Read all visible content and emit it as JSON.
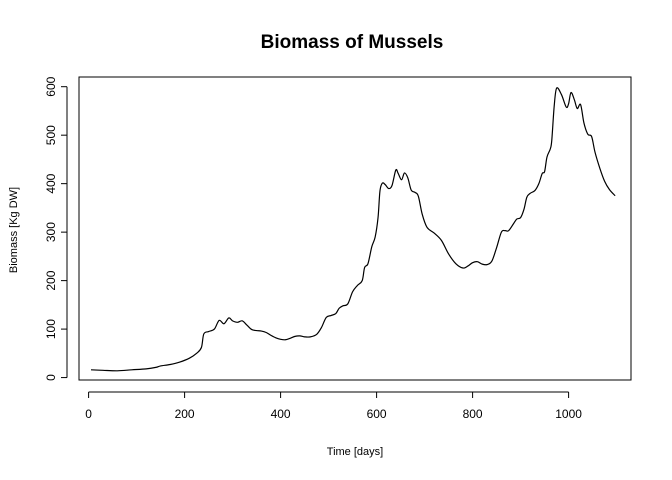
{
  "chart_data": {
    "type": "line",
    "title": "Biomass of Mussels",
    "xlabel": "Time [days]",
    "ylabel": "Biomass [Kg DW]",
    "xlim": [
      -20,
      1130
    ],
    "ylim": [
      -5,
      620
    ],
    "x_ticks": [
      0,
      200,
      400,
      600,
      800,
      1000
    ],
    "y_ticks": [
      0,
      100,
      200,
      300,
      400,
      500,
      600
    ],
    "grid": false,
    "series": [
      {
        "color": "#000000",
        "points": [
          [
            5,
            16
          ],
          [
            30,
            15
          ],
          [
            60,
            14
          ],
          [
            90,
            16
          ],
          [
            120,
            18
          ],
          [
            140,
            21
          ],
          [
            150,
            24
          ],
          [
            170,
            27
          ],
          [
            190,
            32
          ],
          [
            210,
            40
          ],
          [
            225,
            50
          ],
          [
            235,
            62
          ],
          [
            240,
            90
          ],
          [
            250,
            95
          ],
          [
            262,
            100
          ],
          [
            272,
            118
          ],
          [
            282,
            111
          ],
          [
            292,
            123
          ],
          [
            300,
            117
          ],
          [
            310,
            114
          ],
          [
            320,
            117
          ],
          [
            330,
            108
          ],
          [
            340,
            99
          ],
          [
            350,
            97
          ],
          [
            360,
            96
          ],
          [
            370,
            93
          ],
          [
            380,
            87
          ],
          [
            390,
            82
          ],
          [
            400,
            79
          ],
          [
            410,
            78
          ],
          [
            420,
            81
          ],
          [
            430,
            85
          ],
          [
            440,
            86
          ],
          [
            450,
            84
          ],
          [
            462,
            84
          ],
          [
            475,
            89
          ],
          [
            485,
            103
          ],
          [
            495,
            124
          ],
          [
            505,
            128
          ],
          [
            515,
            132
          ],
          [
            522,
            143
          ],
          [
            530,
            148
          ],
          [
            540,
            152
          ],
          [
            550,
            177
          ],
          [
            560,
            190
          ],
          [
            570,
            200
          ],
          [
            575,
            227
          ],
          [
            582,
            235
          ],
          [
            590,
            270
          ],
          [
            597,
            290
          ],
          [
            603,
            330
          ],
          [
            607,
            385
          ],
          [
            612,
            401
          ],
          [
            618,
            398
          ],
          [
            625,
            390
          ],
          [
            632,
            396
          ],
          [
            640,
            428
          ],
          [
            645,
            421
          ],
          [
            652,
            408
          ],
          [
            658,
            422
          ],
          [
            665,
            412
          ],
          [
            672,
            387
          ],
          [
            680,
            382
          ],
          [
            687,
            374
          ],
          [
            695,
            337
          ],
          [
            705,
            310
          ],
          [
            720,
            298
          ],
          [
            735,
            283
          ],
          [
            750,
            255
          ],
          [
            765,
            235
          ],
          [
            780,
            226
          ],
          [
            790,
            230
          ],
          [
            800,
            237
          ],
          [
            810,
            239
          ],
          [
            820,
            234
          ],
          [
            830,
            233
          ],
          [
            840,
            240
          ],
          [
            850,
            268
          ],
          [
            860,
            300
          ],
          [
            868,
            303
          ],
          [
            875,
            303
          ],
          [
            885,
            317
          ],
          [
            892,
            327
          ],
          [
            900,
            330
          ],
          [
            907,
            347
          ],
          [
            913,
            372
          ],
          [
            920,
            380
          ],
          [
            930,
            386
          ],
          [
            938,
            400
          ],
          [
            945,
            421
          ],
          [
            950,
            425
          ],
          [
            955,
            455
          ],
          [
            962,
            472
          ],
          [
            965,
            490
          ],
          [
            970,
            560
          ],
          [
            975,
            597
          ],
          [
            985,
            584
          ],
          [
            995,
            558
          ],
          [
            1000,
            565
          ],
          [
            1005,
            588
          ],
          [
            1012,
            573
          ],
          [
            1018,
            555
          ],
          [
            1025,
            563
          ],
          [
            1032,
            525
          ],
          [
            1040,
            502
          ],
          [
            1048,
            497
          ],
          [
            1055,
            465
          ],
          [
            1065,
            432
          ],
          [
            1075,
            405
          ],
          [
            1085,
            388
          ],
          [
            1097,
            375
          ]
        ]
      }
    ]
  }
}
